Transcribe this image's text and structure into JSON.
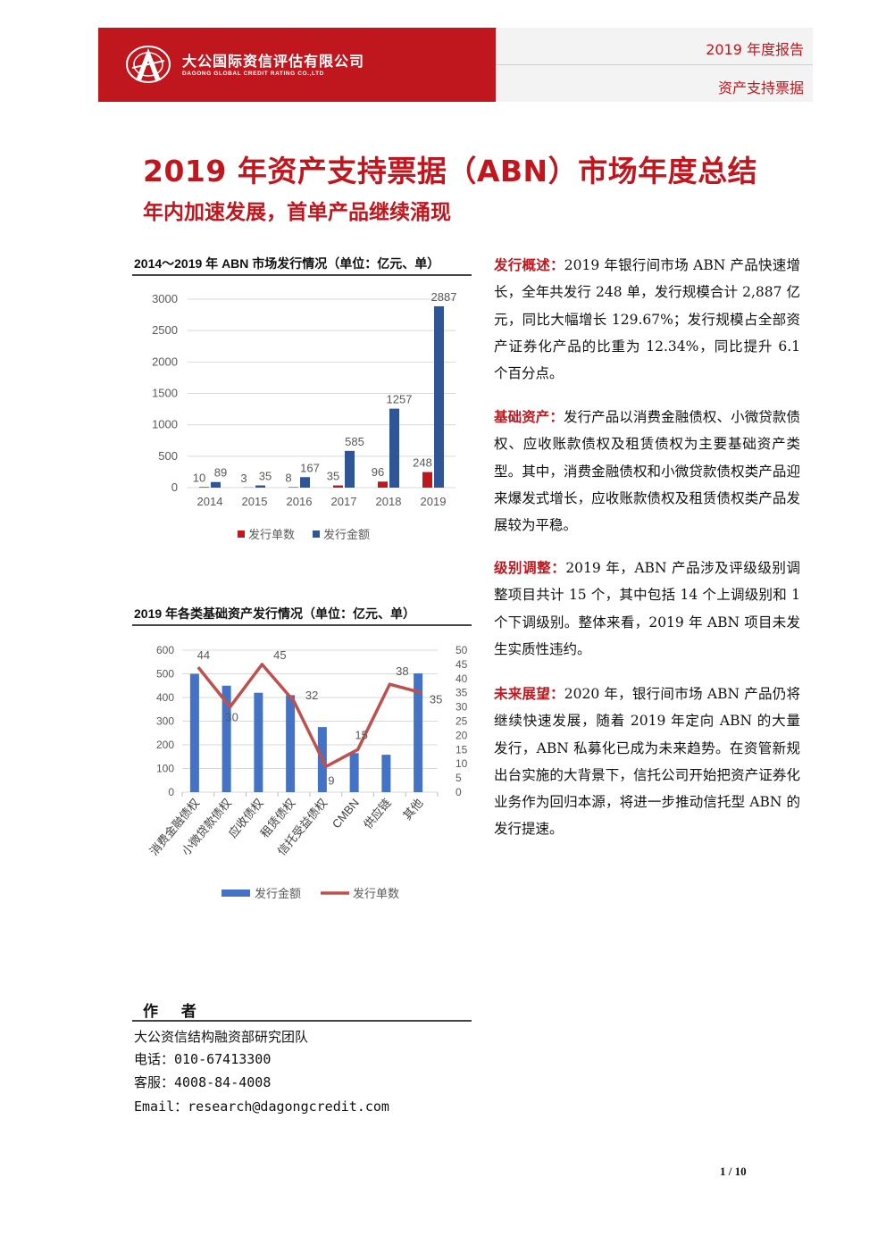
{
  "header": {
    "company_cn": "大公国际资信评估有限公司",
    "company_en": "DAGONG GLOBAL CREDIT RATING CO.,LTD",
    "year_report": "2019 年度报告",
    "section": "资产支持票据",
    "brand_color": "#c0161d"
  },
  "title": "2019 年资产支持票据（ABN）市场年度总结",
  "subtitle": "年内加速发展，首单产品继续涌现",
  "chart_data": [
    {
      "type": "bar",
      "title": "2014～2019 年 ABN 市场发行情况（单位：亿元、单）",
      "categories": [
        "2014",
        "2015",
        "2016",
        "2017",
        "2018",
        "2019"
      ],
      "series": [
        {
          "name": "发行单数",
          "values": [
            10,
            3,
            8,
            35,
            96,
            248
          ],
          "color": "#c0161d"
        },
        {
          "name": "发行金额",
          "values": [
            89,
            35,
            167,
            585,
            1257,
            2887
          ],
          "color": "#2f5597"
        }
      ],
      "y_ticks": [
        "0",
        "500",
        "1000",
        "1500",
        "2000",
        "2500",
        "3000"
      ],
      "ylim": [
        0,
        3000
      ],
      "grid": true,
      "legend": "bottom"
    },
    {
      "type": "bar",
      "title": "2019 年各类基础资产发行情况（单位：亿元、单）",
      "categories": [
        "消费金融债权",
        "小微贷款债权",
        "应收债权",
        "租赁债权",
        "信托受益债权",
        "CMBN",
        "供应链",
        "其他"
      ],
      "series": [
        {
          "name": "发行金额",
          "type": "bar",
          "axis": "left",
          "values": [
            500,
            450,
            420,
            410,
            275,
            165,
            158,
            502
          ],
          "color": "#4472c4"
        },
        {
          "name": "发行单数",
          "type": "line",
          "axis": "right",
          "values": [
            44,
            30,
            45,
            32,
            9,
            15,
            38,
            35
          ],
          "color": "#c0504d"
        }
      ],
      "y_ticks_left": [
        "0",
        "100",
        "200",
        "300",
        "400",
        "500",
        "600"
      ],
      "ylim_left": [
        0,
        600
      ],
      "y_ticks_right": [
        "0",
        "5",
        "10",
        "15",
        "20",
        "25",
        "30",
        "35",
        "40",
        "45",
        "50"
      ],
      "ylim_right": [
        0,
        50
      ],
      "grid": true,
      "legend": "bottom"
    }
  ],
  "paragraphs": [
    {
      "lead": "发行概述：",
      "text": "2019 年银行间市场 ABN 产品快速增长，全年共发行 248 单，发行规模合计 2,887 亿元，同比大幅增长 129.67%；发行规模占全部资产证券化产品的比重为 12.34%，同比提升 6.1 个百分点。"
    },
    {
      "lead": "基础资产：",
      "text": "发行产品以消费金融债权、小微贷款债权、应收账款债权及租赁债权为主要基础资产类型。其中，消费金融债权和小微贷款债权类产品迎来爆发式增长，应收账款债权及租赁债权类产品发展较为平稳。"
    },
    {
      "lead": "级别调整：",
      "text": "2019 年，ABN 产品涉及评级级别调整项目共计 15 个，其中包括 14 个上调级别和 1 个下调级别。整体来看，2019 年 ABN 项目未发生实质性违约。"
    },
    {
      "lead": "未来展望：",
      "text": "2020 年，银行间市场 ABN 产品仍将继续快速发展，随着 2019 年定向 ABN 的大量发行，ABN 私募化已成为未来趋势。在资管新规出台实施的大背景下，信托公司开始把资产证券化业务作为回归本源，将进一步推动信托型 ABN 的发行提速。"
    }
  ],
  "author": {
    "heading": "作 者",
    "team": "大公资信结构融资部研究团队",
    "tel": "电话：010-67413300",
    "service": "客服：4008-84-4008",
    "email": "Email：research@dagongcredit.com"
  },
  "page": "1 / 10"
}
